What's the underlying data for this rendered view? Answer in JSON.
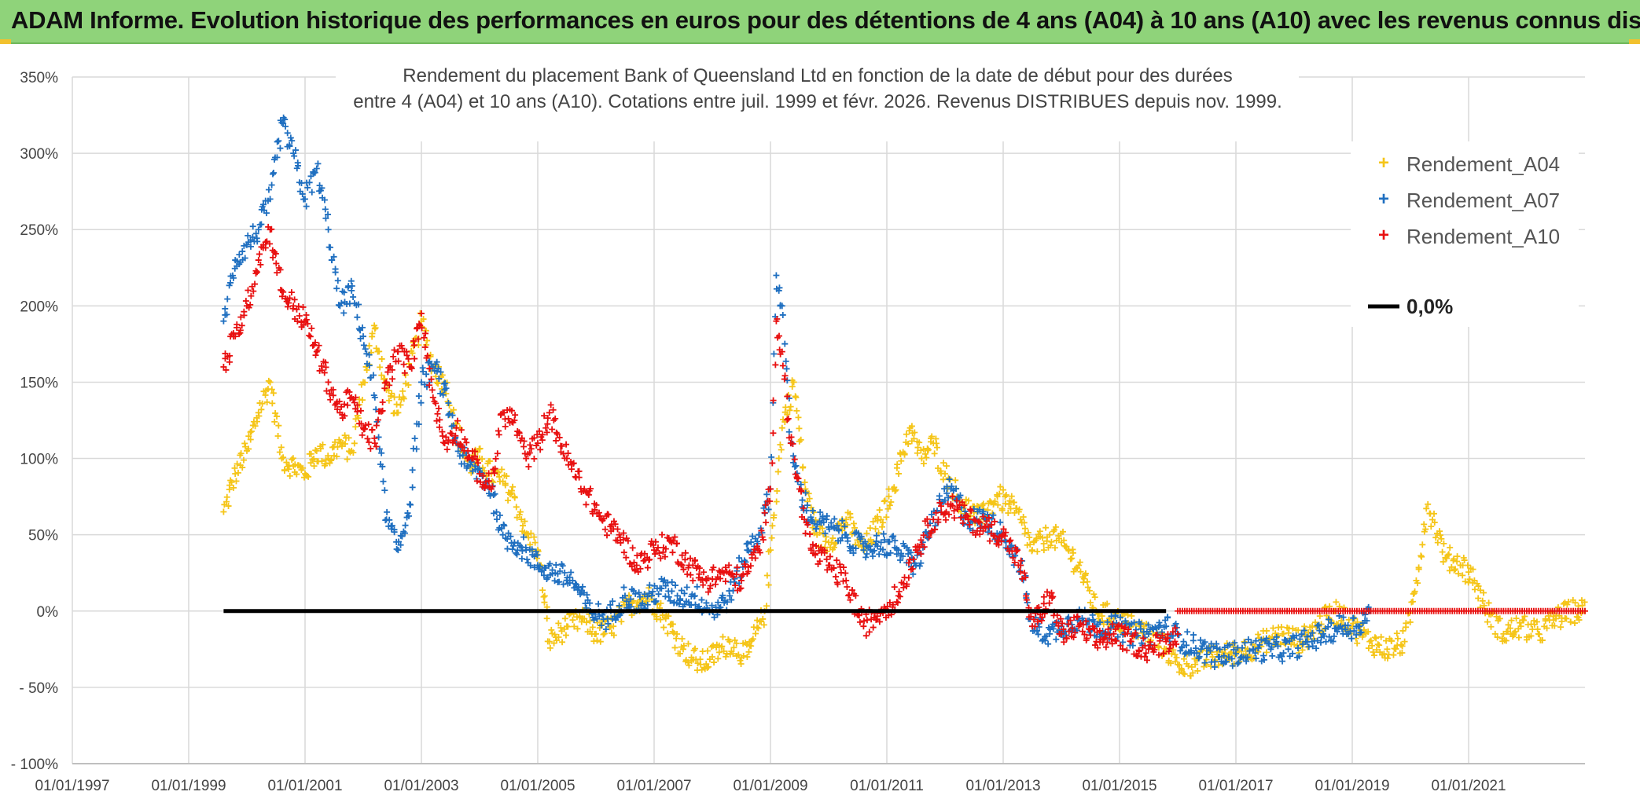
{
  "header": {
    "title": "ADAM Informe. Evolution historique des performances en euros pour des détentions de 4 ans (A04) à 10 ans (A10) avec les revenus connus distribués"
  },
  "colors": {
    "header_bg": "#8fd37a",
    "a04": "#f5c518",
    "a07": "#1f6fc0",
    "a10": "#e81010",
    "zero": "#000000",
    "grid": "#d9d9d9"
  },
  "chart_data": {
    "type": "scatter",
    "title_lines": [
      "Rendement du placement Bank of Queensland Ltd en fonction de la date de début pour des durées",
      "entre 4 (A04) et 10 ans (A10). Cotations entre juil. 1999 et févr. 2026. Revenus DISTRIBUES depuis nov. 1999."
    ],
    "x_tick_labels": [
      "01/01/1997",
      "01/01/1999",
      "01/01/2001",
      "01/01/2003",
      "01/01/2005",
      "01/01/2007",
      "01/01/2009",
      "01/01/2011",
      "01/01/2013",
      "01/01/2015",
      "01/01/2017",
      "01/01/2019",
      "01/01/2021"
    ],
    "x_range": [
      1997.0,
      2023.0
    ],
    "y_tick_labels": [
      "350%",
      "300%",
      "250%",
      "200%",
      "150%",
      "100%",
      "50%",
      "0%",
      "- 50%",
      "- 100%"
    ],
    "y_range": [
      -100,
      350
    ],
    "y_step": 50,
    "legend": [
      {
        "key": "a04",
        "label": "Rendement_A04",
        "marker": "+"
      },
      {
        "key": "a07",
        "label": "Rendement_A07",
        "marker": "+"
      },
      {
        "key": "a10",
        "label": "Rendement_A10",
        "marker": "+"
      },
      {
        "key": "zero",
        "label": "0,0%",
        "marker": "line"
      }
    ],
    "series": [
      {
        "name": "Rendement_A04",
        "key": "a04",
        "x": [
          1999.6,
          1999.8,
          2000.0,
          2000.2,
          2000.4,
          2000.6,
          2000.8,
          2001.0,
          2001.2,
          2001.4,
          2001.6,
          2001.8,
          2002.0,
          2002.2,
          2002.4,
          2002.6,
          2002.8,
          2003.0,
          2003.2,
          2003.4,
          2003.6,
          2003.8,
          2004.0,
          2004.2,
          2004.4,
          2004.6,
          2004.8,
          2005.0,
          2005.2,
          2005.5,
          2005.8,
          2006.0,
          2006.3,
          2006.6,
          2006.9,
          2007.2,
          2007.5,
          2007.8,
          2008.0,
          2008.3,
          2008.6,
          2008.9,
          2009.0,
          2009.2,
          2009.4,
          2009.6,
          2009.8,
          2010.0,
          2010.3,
          2010.6,
          2010.9,
          2011.1,
          2011.4,
          2011.6,
          2011.8,
          2012.0,
          2012.3,
          2012.6,
          2012.9,
          2013.1,
          2013.3,
          2013.5,
          2013.8,
          2014.0,
          2014.3,
          2014.6,
          2014.9,
          2015.2,
          2015.5,
          2015.8,
          2016.0,
          2016.3,
          2016.6,
          2016.9,
          2017.2,
          2017.5,
          2017.8,
          2018.1,
          2018.4,
          2018.7,
          2019.0,
          2019.3,
          2019.6,
          2019.9,
          2020.1,
          2020.3,
          2020.6,
          2020.9,
          2021.1,
          2021.3,
          2021.6,
          2021.9,
          2022.2,
          2022.5,
          2022.8,
          2023.0
        ],
        "y": [
          65,
          90,
          105,
          130,
          150,
          100,
          95,
          90,
          105,
          100,
          110,
          105,
          150,
          185,
          145,
          130,
          160,
          190,
          160,
          150,
          120,
          95,
          100,
          90,
          85,
          75,
          50,
          40,
          -20,
          -10,
          -5,
          -15,
          -10,
          5,
          10,
          -5,
          -25,
          -35,
          -30,
          -20,
          -30,
          0,
          40,
          120,
          150,
          80,
          50,
          45,
          60,
          40,
          60,
          80,
          120,
          100,
          110,
          90,
          70,
          60,
          75,
          70,
          60,
          40,
          50,
          45,
          30,
          0,
          -5,
          -10,
          -15,
          -25,
          -35,
          -35,
          -30,
          -28,
          -25,
          -20,
          -15,
          -20,
          -10,
          0,
          -10,
          -20,
          -25,
          -20,
          20,
          70,
          35,
          30,
          20,
          0,
          -15,
          -10,
          -15,
          -5,
          0,
          0
        ]
      },
      {
        "name": "Rendement_A07",
        "key": "a07",
        "x": [
          1999.6,
          1999.8,
          2000.0,
          2000.2,
          2000.4,
          2000.6,
          2000.8,
          2001.0,
          2001.2,
          2001.4,
          2001.6,
          2001.8,
          2002.0,
          2002.2,
          2002.4,
          2002.6,
          2002.8,
          2003.0,
          2003.2,
          2003.4,
          2003.6,
          2003.8,
          2004.0,
          2004.2,
          2004.4,
          2004.6,
          2004.8,
          2005.0,
          2005.3,
          2005.6,
          2005.9,
          2006.2,
          2006.5,
          2006.8,
          2007.1,
          2007.4,
          2007.7,
          2008.0,
          2008.3,
          2008.6,
          2008.8,
          2009.0,
          2009.1,
          2009.2,
          2009.35,
          2009.5,
          2009.7,
          2010.0,
          2010.3,
          2010.6,
          2010.9,
          2011.2,
          2011.5,
          2011.8,
          2012.1,
          2012.4,
          2012.7,
          2013.0,
          2013.3,
          2013.5,
          2013.8,
          2014.0,
          2014.3,
          2014.6,
          2014.9,
          2015.2,
          2015.5,
          2015.8,
          2016.1,
          2016.4,
          2016.7,
          2017.0,
          2017.3,
          2017.6,
          2017.9,
          2018.2,
          2018.5,
          2018.8,
          2019.1,
          2019.3
        ],
        "y": [
          190,
          230,
          240,
          250,
          270,
          320,
          300,
          270,
          290,
          250,
          200,
          210,
          180,
          140,
          60,
          40,
          70,
          150,
          160,
          145,
          110,
          95,
          90,
          80,
          50,
          45,
          40,
          30,
          25,
          20,
          0,
          -5,
          10,
          5,
          15,
          10,
          10,
          0,
          10,
          40,
          50,
          80,
          220,
          200,
          110,
          80,
          60,
          55,
          50,
          40,
          45,
          40,
          30,
          60,
          80,
          60,
          60,
          50,
          30,
          -10,
          -15,
          -10,
          -5,
          -10,
          -10,
          -15,
          -15,
          -10,
          -20,
          -25,
          -30,
          -28,
          -25,
          -25,
          -25,
          -20,
          -15,
          -10,
          -10,
          0
        ]
      },
      {
        "name": "Rendement_A10",
        "key": "a10",
        "x": [
          1999.6,
          1999.8,
          2000.0,
          2000.2,
          2000.4,
          2000.6,
          2000.8,
          2001.0,
          2001.2,
          2001.4,
          2001.6,
          2001.8,
          2002.0,
          2002.2,
          2002.4,
          2002.6,
          2002.8,
          2003.0,
          2003.2,
          2003.4,
          2003.6,
          2003.8,
          2004.0,
          2004.2,
          2004.4,
          2004.6,
          2004.8,
          2005.0,
          2005.2,
          2005.5,
          2005.8,
          2006.1,
          2006.4,
          2006.7,
          2007.0,
          2007.3,
          2007.6,
          2007.9,
          2008.2,
          2008.5,
          2008.8,
          2009.0,
          2009.1,
          2009.2,
          2009.35,
          2009.5,
          2009.7,
          2010.0,
          2010.3,
          2010.6,
          2010.9,
          2011.2,
          2011.5,
          2011.8,
          2012.1,
          2012.4,
          2012.7,
          2013.0,
          2013.3,
          2013.5,
          2013.8,
          2014.0,
          2014.3,
          2014.6,
          2014.9,
          2015.2,
          2015.5,
          2015.8,
          2016.0
        ],
        "y": [
          160,
          180,
          200,
          230,
          250,
          210,
          200,
          190,
          170,
          150,
          130,
          140,
          120,
          110,
          150,
          170,
          160,
          195,
          140,
          110,
          120,
          105,
          90,
          80,
          130,
          125,
          100,
          110,
          130,
          100,
          80,
          60,
          50,
          30,
          40,
          45,
          30,
          20,
          25,
          20,
          40,
          80,
          190,
          170,
          110,
          80,
          40,
          30,
          20,
          -10,
          0,
          10,
          40,
          60,
          70,
          60,
          55,
          50,
          30,
          -10,
          10,
          -15,
          -10,
          -20,
          -15,
          -20,
          -25,
          -20,
          -15
        ]
      },
      {
        "name": "Rendement_A10",
        "key": "a10",
        "flat": true,
        "x_from": 2016.0,
        "x_to": 2023.0,
        "y": 0
      }
    ],
    "zero_line": {
      "x_from": 1999.6,
      "x_to": 2015.8,
      "y": 0
    }
  }
}
